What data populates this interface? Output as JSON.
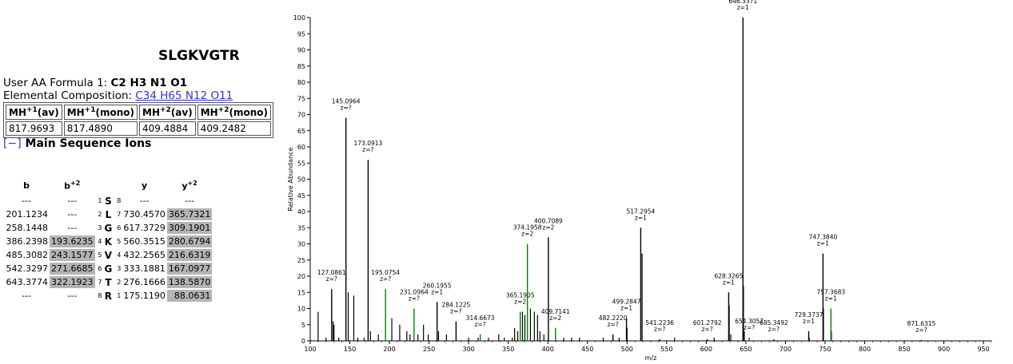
{
  "peptide": "SLGKVGTR",
  "formula_label": "User AA Formula 1:",
  "formula_value": "C2 H3 N1 O1",
  "composition_label": "Elemental Composition:",
  "composition_value": "C34 H65 N12 O11",
  "mh_table": {
    "headers": [
      {
        "main": "MH",
        "sup": "+1",
        "suffix": "(av)"
      },
      {
        "main": "MH",
        "sup": "+1",
        "suffix": "(mono)"
      },
      {
        "main": "MH",
        "sup": "+2",
        "suffix": "(av)"
      },
      {
        "main": "MH",
        "sup": "+2",
        "suffix": "(mono)"
      }
    ],
    "values": [
      "817.9693",
      "817.4890",
      "409.4884",
      "409.2482"
    ]
  },
  "ions_toggle": "[−]",
  "ions_title": "Main Sequence Ions",
  "ion_headers": {
    "b": "b",
    "b2": "b",
    "b2_sup": "+2",
    "y": "y",
    "y2": "y",
    "y2_sup": "+2"
  },
  "ion_rows": [
    {
      "b": "---",
      "b2": "---",
      "n": "1",
      "aa": "S",
      "m": "8",
      "y": "---",
      "y2": "---",
      "b2_hl": false,
      "y2_hl": false
    },
    {
      "b": "201.1234",
      "b2": "---",
      "n": "2",
      "aa": "L",
      "m": "7",
      "y": "730.4570",
      "y2": "365.7321",
      "b2_hl": false,
      "y2_hl": true
    },
    {
      "b": "258.1448",
      "b2": "---",
      "n": "3",
      "aa": "G",
      "m": "6",
      "y": "617.3729",
      "y2": "309.1901",
      "b2_hl": false,
      "y2_hl": true
    },
    {
      "b": "386.2398",
      "b2": "193.6235",
      "n": "4",
      "aa": "K",
      "m": "5",
      "y": "560.3515",
      "y2": "280.6794",
      "b2_hl": true,
      "y2_hl": true
    },
    {
      "b": "485.3082",
      "b2": "243.1577",
      "n": "5",
      "aa": "V",
      "m": "4",
      "y": "432.2565",
      "y2": "216.6319",
      "b2_hl": true,
      "y2_hl": true
    },
    {
      "b": "542.3297",
      "b2": "271.6685",
      "n": "6",
      "aa": "G",
      "m": "3",
      "y": "333.1881",
      "y2": "167.0977",
      "b2_hl": true,
      "y2_hl": true
    },
    {
      "b": "643.3774",
      "b2": "322.1923",
      "n": "7",
      "aa": "T",
      "m": "2",
      "y": "276.1666",
      "y2": "138.5870",
      "b2_hl": true,
      "y2_hl": true
    },
    {
      "b": "---",
      "b2": "---",
      "n": "8",
      "aa": "R",
      "m": "1",
      "y": "175.1190",
      "y2": "88.0631",
      "b2_hl": false,
      "y2_hl": true
    }
  ],
  "chart_data": {
    "type": "bar",
    "xlabel": "m/z",
    "ylabel": "Relative Abundance",
    "xlim": [
      100,
      960
    ],
    "ylim": [
      0,
      100
    ],
    "x_ticks": [
      100,
      150,
      200,
      250,
      300,
      350,
      400,
      450,
      500,
      550,
      600,
      650,
      700,
      750,
      800,
      850,
      900,
      950
    ],
    "y_ticks": [
      0,
      5,
      10,
      15,
      20,
      25,
      30,
      35,
      40,
      45,
      50,
      55,
      60,
      65,
      70,
      75,
      80,
      85,
      90,
      95,
      100
    ],
    "labeled_peaks": [
      {
        "mz": 127.0861,
        "label": "127.0861",
        "z": "z=?",
        "intensity": 16,
        "color": "#000000"
      },
      {
        "mz": 145.0964,
        "label": "145.0964",
        "z": "z=?",
        "intensity": 69,
        "color": "#000000"
      },
      {
        "mz": 173.0913,
        "label": "173.0913",
        "z": "z=?",
        "intensity": 56,
        "color": "#000000"
      },
      {
        "mz": 195.0754,
        "label": "195.0754",
        "z": "z=?",
        "intensity": 16,
        "color": "#008000"
      },
      {
        "mz": 231.0964,
        "label": "231.0964",
        "z": "z=?",
        "intensity": 10,
        "color": "#008000"
      },
      {
        "mz": 260.1955,
        "label": "260.1955",
        "z": "z=1",
        "intensity": 12,
        "color": "#000000"
      },
      {
        "mz": 284.1225,
        "label": "284.1225",
        "z": "z=?",
        "intensity": 6,
        "color": "#000000"
      },
      {
        "mz": 314.6673,
        "label": "314.6673",
        "z": "z=?",
        "intensity": 2,
        "color": "#008000"
      },
      {
        "mz": 365.1905,
        "label": "365.1905",
        "z": "z=2",
        "intensity": 9,
        "color": "#008000"
      },
      {
        "mz": 374.1958,
        "label": "374.1958",
        "z": "z=2",
        "intensity": 30,
        "color": "#008000"
      },
      {
        "mz": 400.7089,
        "label": "400.7089",
        "z": "z=2",
        "intensity": 32,
        "color": "#000000"
      },
      {
        "mz": 409.7141,
        "label": "409.7141",
        "z": "z=2",
        "intensity": 4,
        "color": "#008000"
      },
      {
        "mz": 482.222,
        "label": "482.2220",
        "z": "z=?",
        "intensity": 2,
        "color": "#000000"
      },
      {
        "mz": 499.2847,
        "label": "499.2847",
        "z": "z=1",
        "intensity": 7,
        "color": "#000000"
      },
      {
        "mz": 517.2954,
        "label": "517.2954",
        "z": "z=1",
        "intensity": 35,
        "color": "#000000"
      },
      {
        "mz": 541.2236,
        "label": "541.2236",
        "z": "z=?",
        "intensity": 0.5,
        "color": "#000000"
      },
      {
        "mz": 601.2792,
        "label": "601.2792",
        "z": "z=?",
        "intensity": 0.5,
        "color": "#000000"
      },
      {
        "mz": 628.3265,
        "label": "628.3265",
        "z": "z=1",
        "intensity": 15,
        "color": "#000000"
      },
      {
        "mz": 646.3371,
        "label": "646.3371",
        "z": "z=1",
        "intensity": 100,
        "color": "#000000"
      },
      {
        "mz": 654.3057,
        "label": "654.3057",
        "z": "z=?",
        "intensity": 1,
        "color": "#008000"
      },
      {
        "mz": 685.3492,
        "label": "685.3492",
        "z": "z=?",
        "intensity": 0.5,
        "color": "#000000"
      },
      {
        "mz": 729.3737,
        "label": "729.3737",
        "z": "z=1",
        "intensity": 3,
        "color": "#000000"
      },
      {
        "mz": 747.384,
        "label": "747.3840",
        "z": "z=1",
        "intensity": 27,
        "color": "#000000"
      },
      {
        "mz": 757.3683,
        "label": "757.3683",
        "z": "z=1",
        "intensity": 10,
        "color": "#008000"
      },
      {
        "mz": 871.6315,
        "label": "871.6315",
        "z": "z=?",
        "intensity": 0.3,
        "color": "#000000"
      }
    ],
    "other_peaks": [
      {
        "mz": 110,
        "intensity": 9
      },
      {
        "mz": 120,
        "intensity": 1
      },
      {
        "mz": 129,
        "intensity": 6
      },
      {
        "mz": 130,
        "intensity": 5
      },
      {
        "mz": 136,
        "intensity": 1
      },
      {
        "mz": 148,
        "intensity": 15
      },
      {
        "mz": 155,
        "intensity": 14
      },
      {
        "mz": 160,
        "intensity": 1
      },
      {
        "mz": 168,
        "intensity": 1
      },
      {
        "mz": 176,
        "intensity": 3
      },
      {
        "mz": 186,
        "intensity": 2
      },
      {
        "mz": 203,
        "intensity": 7
      },
      {
        "mz": 213,
        "intensity": 5
      },
      {
        "mz": 222,
        "intensity": 3
      },
      {
        "mz": 226,
        "intensity": 2
      },
      {
        "mz": 236,
        "intensity": 2
      },
      {
        "mz": 243,
        "intensity": 5
      },
      {
        "mz": 249,
        "intensity": 2
      },
      {
        "mz": 262,
        "intensity": 3
      },
      {
        "mz": 272,
        "intensity": 2
      },
      {
        "mz": 300,
        "intensity": 1
      },
      {
        "mz": 312,
        "intensity": 1
      },
      {
        "mz": 325,
        "intensity": 1
      },
      {
        "mz": 338,
        "intensity": 2
      },
      {
        "mz": 345,
        "intensity": 1
      },
      {
        "mz": 355,
        "intensity": 1
      },
      {
        "mz": 358,
        "intensity": 4
      },
      {
        "mz": 362,
        "intensity": 3
      },
      {
        "mz": 368,
        "intensity": 9
      },
      {
        "mz": 371,
        "intensity": 8
      },
      {
        "mz": 378,
        "intensity": 10
      },
      {
        "mz": 383,
        "intensity": 9
      },
      {
        "mz": 387,
        "intensity": 8
      },
      {
        "mz": 390,
        "intensity": 3
      },
      {
        "mz": 395,
        "intensity": 2
      },
      {
        "mz": 420,
        "intensity": 1
      },
      {
        "mz": 430,
        "intensity": 1
      },
      {
        "mz": 440,
        "intensity": 1
      },
      {
        "mz": 470,
        "intensity": 1
      },
      {
        "mz": 490,
        "intensity": 1
      },
      {
        "mz": 500,
        "intensity": 4
      },
      {
        "mz": 519,
        "intensity": 27
      },
      {
        "mz": 560,
        "intensity": 1
      },
      {
        "mz": 610,
        "intensity": 1
      },
      {
        "mz": 629,
        "intensity": 11
      },
      {
        "mz": 631,
        "intensity": 2
      },
      {
        "mz": 647,
        "intensity": 17
      },
      {
        "mz": 648,
        "intensity": 3
      },
      {
        "mz": 730,
        "intensity": 1
      },
      {
        "mz": 748,
        "intensity": 10
      },
      {
        "mz": 758,
        "intensity": 3
      }
    ]
  }
}
